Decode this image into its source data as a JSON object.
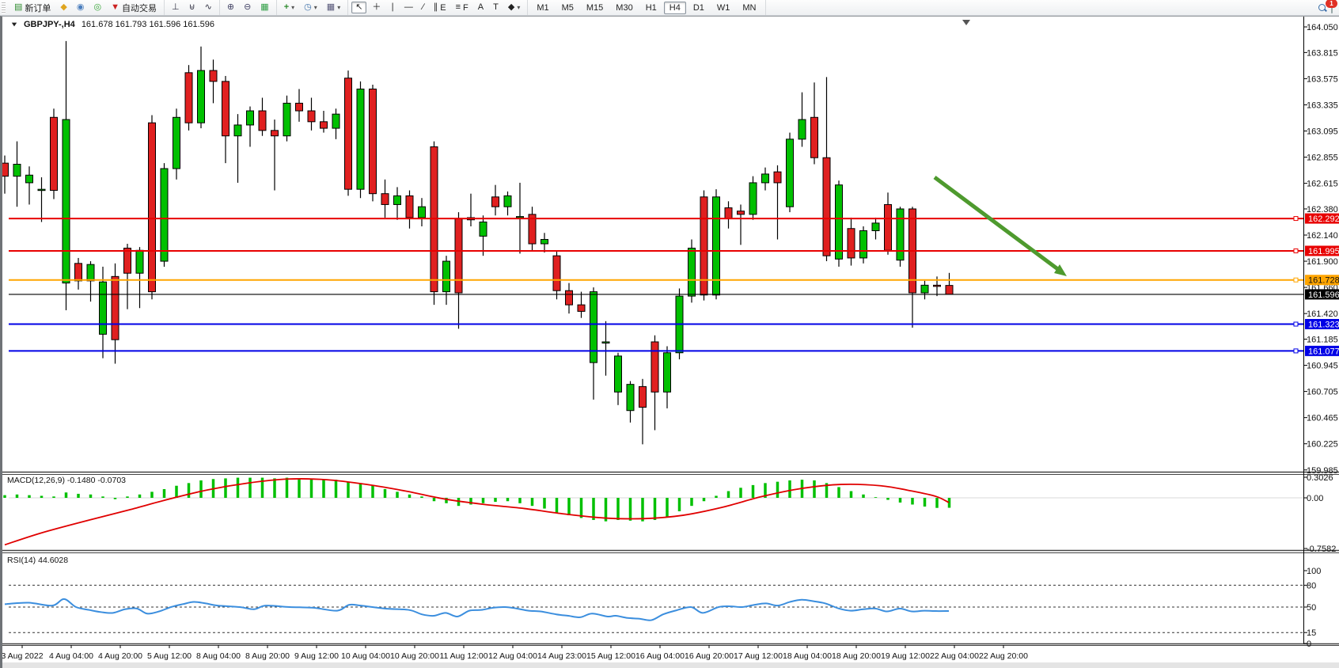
{
  "toolbar": {
    "groupA": [
      {
        "name": "new-order-button",
        "icon": "new-order-icon",
        "glyph": "▤",
        "label": "新订单"
      },
      {
        "name": "chart-gallery-button",
        "icon": "book-icon",
        "glyph": "◆",
        "label": ""
      },
      {
        "name": "publisher-button",
        "icon": "publisher-icon",
        "glyph": "◉",
        "label": ""
      },
      {
        "name": "signals-button",
        "icon": "signal-icon",
        "glyph": "◎",
        "label": ""
      },
      {
        "name": "auto-trading-button",
        "icon": "autotrade-icon",
        "glyph": "▼",
        "label": "自动交易"
      }
    ],
    "groupB": [
      {
        "name": "bar-chart-button",
        "icon": "bars-icon",
        "glyph": "⊥",
        "label": ""
      },
      {
        "name": "candlestick-chart-button",
        "icon": "candles-icon",
        "glyph": "⊎",
        "label": ""
      },
      {
        "name": "line-chart-button",
        "icon": "linechart-icon",
        "glyph": "∿",
        "label": ""
      }
    ],
    "groupC": [
      {
        "name": "zoom-in-button",
        "icon": "zoom-in-icon",
        "glyph": "⊕",
        "label": ""
      },
      {
        "name": "zoom-out-button",
        "icon": "zoom-out-icon",
        "glyph": "⊖",
        "label": ""
      },
      {
        "name": "tile-windows-button",
        "icon": "tiles-icon",
        "glyph": "▦",
        "label": ""
      }
    ],
    "groupD": [
      {
        "name": "indicators-button",
        "icon": "indicator-icon",
        "glyph": "+",
        "label": "",
        "caret": true
      },
      {
        "name": "periods-button",
        "icon": "clock-icon",
        "glyph": "◷",
        "label": "",
        "caret": true
      },
      {
        "name": "templates-button",
        "icon": "template-icon",
        "glyph": "▦",
        "label": "",
        "caret": true
      }
    ],
    "groupE": [
      {
        "name": "cursor-button",
        "icon": "cursor-icon",
        "glyph": "↖",
        "label": "",
        "active": true
      },
      {
        "name": "crosshair-button",
        "icon": "crosshair-icon",
        "glyph": "＋",
        "label": ""
      },
      {
        "name": "vertical-line-button",
        "icon": "vline-icon",
        "glyph": "∣",
        "label": ""
      },
      {
        "name": "horizontal-line-button",
        "icon": "hline-icon",
        "glyph": "—",
        "label": ""
      },
      {
        "name": "trendline-button",
        "icon": "trendline-icon",
        "glyph": "∕",
        "label": ""
      },
      {
        "name": "equidistant-channel-button",
        "icon": "channel-icon",
        "glyph": "∥",
        "label": "E"
      },
      {
        "name": "fibonacci-button",
        "icon": "fibonacci-icon",
        "glyph": "≡",
        "label": "F"
      },
      {
        "name": "text-button",
        "icon": "text-icon",
        "glyph": "A",
        "label": ""
      },
      {
        "name": "text-label-button",
        "icon": "label-icon",
        "glyph": "T",
        "label": ""
      },
      {
        "name": "arrows-button",
        "icon": "shapes-icon",
        "glyph": "◆",
        "label": "",
        "caret": true
      }
    ],
    "timeframes": [
      "M1",
      "M5",
      "M15",
      "M30",
      "H1",
      "H4",
      "D1",
      "W1",
      "MN"
    ],
    "active_timeframe": "H4",
    "caret_glyph": "▾",
    "notifications_badge": "1"
  },
  "header": {
    "collapse_glyph": "▼",
    "symbol": "GBPJPY-,H4",
    "ohlc_text": "161.678 161.793 161.596 161.596"
  },
  "indicator_labels": {
    "macd_name": "MACD(12,26,9)",
    "macd_values": "-0.1480 -0.0703",
    "rsi_name": "RSI(14)",
    "rsi_value": "44.6028"
  },
  "chart_data": {
    "type": "candlestick",
    "symbol": "GBPJPY-",
    "timeframe": "H4",
    "last_ohlc": {
      "open": 161.678,
      "high": 161.793,
      "low": 161.596,
      "close": 161.596
    },
    "price_axis_ticks": [
      "164.050",
      "163.815",
      "163.575",
      "163.335",
      "163.095",
      "162.855",
      "162.615",
      "162.380",
      "162.140",
      "161.900",
      "161.660",
      "161.420",
      "161.185",
      "160.945",
      "160.705",
      "160.465",
      "160.225",
      "159.985"
    ],
    "ylim": [
      159.985,
      164.05
    ],
    "grid": false,
    "date_labels": [
      "3 Aug 2022",
      "4 Aug 04:00",
      "4 Aug 20:00",
      "5 Aug 12:00",
      "8 Aug 04:00",
      "8 Aug 20:00",
      "9 Aug 12:00",
      "10 Aug 04:00",
      "10 Aug 20:00",
      "11 Aug 12:00",
      "12 Aug 04:00",
      "14 Aug 23:00",
      "15 Aug 12:00",
      "16 Aug 04:00",
      "16 Aug 20:00",
      "17 Aug 12:00",
      "18 Aug 04:00",
      "18 Aug 20:00",
      "19 Aug 12:00",
      "22 Aug 04:00",
      "22 Aug 20:00"
    ],
    "candles": [
      [
        162.8,
        162.87,
        162.52,
        162.68
      ],
      [
        162.68,
        163.0,
        162.4,
        162.79
      ],
      [
        162.62,
        162.77,
        162.42,
        162.69
      ],
      [
        162.55,
        162.67,
        162.26,
        162.56
      ],
      [
        163.22,
        163.3,
        162.47,
        162.55
      ],
      [
        161.7,
        163.92,
        161.45,
        163.2
      ],
      [
        161.88,
        161.93,
        161.64,
        161.72
      ],
      [
        161.72,
        161.9,
        161.53,
        161.87
      ],
      [
        161.23,
        161.85,
        161.01,
        161.71
      ],
      [
        161.76,
        161.88,
        160.96,
        161.18
      ],
      [
        162.02,
        162.06,
        161.46,
        161.79
      ],
      [
        161.79,
        162.03,
        161.47,
        162.0
      ],
      [
        163.17,
        163.24,
        161.55,
        161.62
      ],
      [
        161.9,
        162.8,
        161.85,
        162.75
      ],
      [
        162.75,
        163.3,
        162.65,
        163.22
      ],
      [
        163.63,
        163.7,
        163.1,
        163.17
      ],
      [
        163.17,
        163.87,
        163.12,
        163.65
      ],
      [
        163.65,
        163.75,
        163.35,
        163.55
      ],
      [
        163.55,
        163.6,
        162.8,
        163.05
      ],
      [
        163.05,
        163.25,
        162.62,
        163.15
      ],
      [
        163.15,
        163.32,
        162.95,
        163.28
      ],
      [
        163.28,
        163.4,
        163.05,
        163.1
      ],
      [
        163.1,
        163.2,
        162.55,
        163.05
      ],
      [
        163.05,
        163.42,
        163.0,
        163.35
      ],
      [
        163.35,
        163.48,
        163.18,
        163.28
      ],
      [
        163.28,
        163.4,
        163.1,
        163.18
      ],
      [
        163.18,
        163.28,
        163.08,
        163.12
      ],
      [
        163.12,
        163.3,
        163.02,
        163.25
      ],
      [
        163.58,
        163.65,
        162.5,
        162.56
      ],
      [
        162.56,
        163.55,
        162.48,
        163.48
      ],
      [
        163.48,
        163.52,
        162.45,
        162.52
      ],
      [
        162.52,
        162.65,
        162.3,
        162.42
      ],
      [
        162.42,
        162.58,
        162.28,
        162.5
      ],
      [
        162.5,
        162.55,
        162.2,
        162.3
      ],
      [
        162.3,
        162.48,
        162.22,
        162.4
      ],
      [
        162.95,
        163.0,
        161.5,
        161.62
      ],
      [
        161.62,
        161.95,
        161.5,
        161.9
      ],
      [
        162.29,
        162.35,
        161.28,
        161.61
      ],
      [
        162.3,
        162.52,
        162.22,
        162.28
      ],
      [
        162.13,
        162.32,
        161.95,
        162.26
      ],
      [
        162.49,
        162.6,
        162.32,
        162.4
      ],
      [
        162.4,
        162.54,
        162.32,
        162.5
      ],
      [
        162.3,
        162.62,
        161.97,
        162.31
      ],
      [
        162.33,
        162.4,
        162.0,
        162.06
      ],
      [
        162.06,
        162.16,
        161.98,
        162.1
      ],
      [
        161.95,
        162.0,
        161.55,
        161.63
      ],
      [
        161.63,
        161.7,
        161.42,
        161.5
      ],
      [
        161.5,
        161.62,
        161.38,
        161.44
      ],
      [
        160.97,
        161.66,
        160.63,
        161.62
      ],
      [
        161.15,
        161.35,
        160.85,
        161.16
      ],
      [
        160.7,
        161.06,
        160.58,
        161.03
      ],
      [
        160.53,
        160.8,
        160.42,
        160.77
      ],
      [
        160.75,
        160.82,
        160.22,
        160.56
      ],
      [
        161.16,
        161.22,
        160.35,
        160.7
      ],
      [
        160.7,
        161.12,
        160.55,
        161.06
      ],
      [
        161.06,
        161.65,
        161.0,
        161.58
      ],
      [
        161.58,
        162.1,
        161.52,
        162.02
      ],
      [
        162.49,
        162.55,
        161.54,
        161.59
      ],
      [
        161.59,
        162.56,
        161.55,
        162.49
      ],
      [
        162.39,
        162.45,
        162.2,
        162.29
      ],
      [
        162.36,
        162.42,
        162.05,
        162.33
      ],
      [
        162.33,
        162.68,
        162.28,
        162.62
      ],
      [
        162.62,
        162.76,
        162.55,
        162.7
      ],
      [
        162.72,
        162.78,
        162.1,
        162.62
      ],
      [
        162.4,
        163.08,
        162.35,
        163.02
      ],
      [
        163.02,
        163.45,
        162.95,
        163.2
      ],
      [
        163.22,
        163.54,
        162.79,
        162.85
      ],
      [
        162.85,
        163.59,
        161.9,
        161.95
      ],
      [
        161.92,
        162.64,
        161.85,
        162.6
      ],
      [
        162.2,
        162.3,
        161.86,
        161.93
      ],
      [
        161.93,
        162.22,
        161.88,
        162.18
      ],
      [
        162.18,
        162.3,
        162.1,
        162.25
      ],
      [
        162.42,
        162.53,
        161.96,
        162.0
      ],
      [
        161.91,
        162.4,
        161.85,
        162.38
      ],
      [
        162.38,
        162.4,
        161.29,
        161.61
      ],
      [
        161.61,
        161.72,
        161.55,
        161.68
      ],
      [
        161.68,
        161.76,
        161.58,
        161.678
      ],
      [
        161.678,
        161.793,
        161.596,
        161.596
      ]
    ],
    "hlines": [
      {
        "price": 162.292,
        "label": "162.292",
        "color": "#e80000",
        "label_text": "#ffffff"
      },
      {
        "price": 161.995,
        "label": "161.995",
        "color": "#e80000",
        "label_text": "#ffffff"
      },
      {
        "price": 161.728,
        "label": "161.728",
        "color": "#ffa500",
        "label_text": "#111111"
      },
      {
        "price": 161.596,
        "label": "161.596",
        "color": "#000000",
        "label_text": "#ffffff",
        "is_bid": true
      },
      {
        "price": 161.323,
        "label": "161.323",
        "color": "#0000e6",
        "label_text": "#ffffff"
      },
      {
        "price": 161.077,
        "label": "161.077",
        "color": "#0000e6",
        "label_text": "#ffffff"
      }
    ],
    "macd": {
      "axis_labels": [
        "0.3026",
        "0.00",
        "-0.7582"
      ],
      "histogram": [
        0.04,
        0.05,
        0.04,
        0.03,
        0.02,
        0.08,
        0.06,
        0.05,
        0.02,
        -0.02,
        0.02,
        0.05,
        0.09,
        0.13,
        0.18,
        0.22,
        0.26,
        0.28,
        0.29,
        0.3,
        0.3,
        0.3,
        0.29,
        0.3,
        0.29,
        0.28,
        0.27,
        0.27,
        0.24,
        0.22,
        0.18,
        0.13,
        0.09,
        0.05,
        0.02,
        -0.05,
        -0.08,
        -0.12,
        -0.1,
        -0.08,
        -0.06,
        -0.05,
        -0.08,
        -0.12,
        -0.16,
        -0.22,
        -0.26,
        -0.3,
        -0.33,
        -0.35,
        -0.33,
        -0.34,
        -0.35,
        -0.33,
        -0.28,
        -0.2,
        -0.12,
        -0.05,
        0.03,
        0.1,
        0.15,
        0.19,
        0.22,
        0.24,
        0.26,
        0.27,
        0.26,
        0.22,
        0.16,
        0.1,
        0.05,
        0.01,
        -0.03,
        -0.07,
        -0.1,
        -0.13,
        -0.15,
        -0.148
      ],
      "signal_points": [
        [
          3,
          -0.7
        ],
        [
          50,
          -0.52
        ],
        [
          110,
          -0.33
        ],
        [
          160,
          -0.18
        ],
        [
          210,
          -0.02
        ],
        [
          260,
          0.12
        ],
        [
          310,
          0.22
        ],
        [
          360,
          0.28
        ],
        [
          410,
          0.27
        ],
        [
          460,
          0.2
        ],
        [
          510,
          0.1
        ],
        [
          560,
          -0.02
        ],
        [
          610,
          -0.1
        ],
        [
          660,
          -0.16
        ],
        [
          710,
          -0.24
        ],
        [
          760,
          -0.3
        ],
        [
          810,
          -0.31
        ],
        [
          860,
          -0.26
        ],
        [
          910,
          -0.14
        ],
        [
          960,
          0.02
        ],
        [
          1010,
          0.14
        ],
        [
          1060,
          0.2
        ],
        [
          1110,
          0.18
        ],
        [
          1150,
          0.1
        ],
        [
          1180,
          0.02
        ],
        [
          1196,
          -0.0703
        ]
      ]
    },
    "rsi": {
      "axis_labels": [
        "100",
        "80",
        "50",
        "15",
        "0"
      ],
      "levels": [
        80,
        50,
        15
      ],
      "points": [
        [
          3,
          54
        ],
        [
          33,
          56
        ],
        [
          63,
          52
        ],
        [
          78,
          61
        ],
        [
          93,
          50
        ],
        [
          110,
          46
        ],
        [
          125,
          43
        ],
        [
          140,
          42
        ],
        [
          155,
          47
        ],
        [
          170,
          48
        ],
        [
          183,
          41
        ],
        [
          198,
          44
        ],
        [
          213,
          50
        ],
        [
          228,
          54
        ],
        [
          242,
          57
        ],
        [
          257,
          55
        ],
        [
          272,
          52
        ],
        [
          300,
          50
        ],
        [
          318,
          47
        ],
        [
          333,
          52
        ],
        [
          363,
          50
        ],
        [
          393,
          49
        ],
        [
          423,
          45
        ],
        [
          438,
          53
        ],
        [
          453,
          52
        ],
        [
          483,
          48
        ],
        [
          514,
          46
        ],
        [
          530,
          40
        ],
        [
          545,
          38
        ],
        [
          560,
          42
        ],
        [
          575,
          37
        ],
        [
          590,
          45
        ],
        [
          605,
          46
        ],
        [
          620,
          49
        ],
        [
          635,
          50
        ],
        [
          650,
          48
        ],
        [
          665,
          45
        ],
        [
          680,
          44
        ],
        [
          700,
          40
        ],
        [
          715,
          38
        ],
        [
          730,
          36
        ],
        [
          745,
          41
        ],
        [
          765,
          37
        ],
        [
          775,
          38
        ],
        [
          790,
          35
        ],
        [
          805,
          34
        ],
        [
          820,
          32
        ],
        [
          835,
          40
        ],
        [
          850,
          45
        ],
        [
          870,
          50
        ],
        [
          885,
          42
        ],
        [
          905,
          50
        ],
        [
          920,
          51
        ],
        [
          935,
          50
        ],
        [
          950,
          53
        ],
        [
          965,
          55
        ],
        [
          980,
          52
        ],
        [
          995,
          57
        ],
        [
          1010,
          60
        ],
        [
          1025,
          58
        ],
        [
          1040,
          55
        ],
        [
          1057,
          48
        ],
        [
          1072,
          45
        ],
        [
          1088,
          47
        ],
        [
          1103,
          48
        ],
        [
          1118,
          44
        ],
        [
          1134,
          48
        ],
        [
          1149,
          44
        ],
        [
          1165,
          45
        ],
        [
          1180,
          44.5
        ],
        [
          1196,
          44.6
        ]
      ]
    },
    "arrow_annotation": {
      "from": [
        1178,
        223
      ],
      "to": [
        1345,
        348
      ],
      "color": "#4e9a2e"
    },
    "colors": {
      "bull": "#00c000",
      "bear": "#e02020",
      "wick": "#000000",
      "macd_hist": "#00c000",
      "macd_signal": "#e00000",
      "rsi_line": "#3b8ede",
      "background": "#ffffff",
      "axis_text": "#111111"
    }
  }
}
